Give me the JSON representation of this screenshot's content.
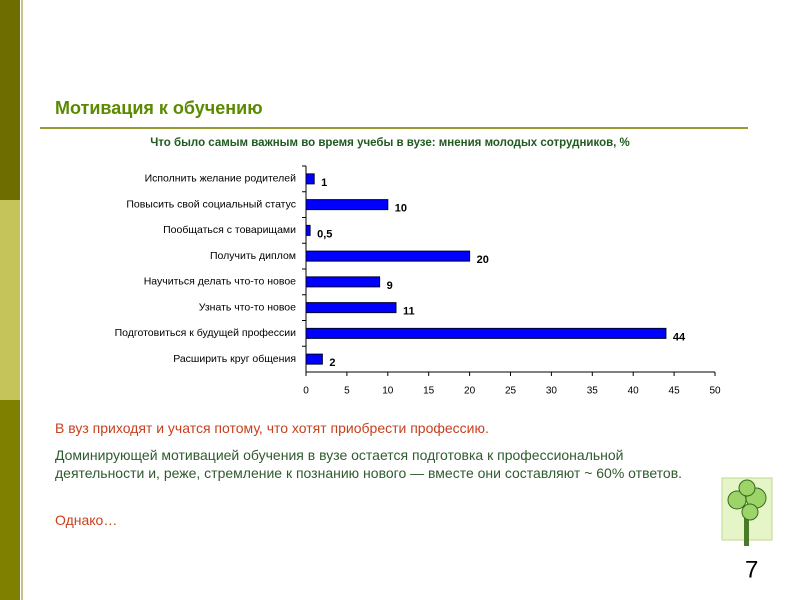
{
  "slide": {
    "title": "Мотивация к обучению",
    "paragraphs": [
      "В вуз приходят и учатся потому, что хотят приобрести профессию.",
      "Доминирующей мотивацией обучения в вузе остается подготовка к профессиональной деятельности и, реже, стремление к познанию нового — вместе они составляют ~ 60% ответов.",
      "Однако…"
    ],
    "page_number": "7"
  },
  "chart_data": {
    "type": "barh",
    "title": "Что было самым важным во время учебы в вузе: мнения молодых сотрудников, %",
    "categories": [
      "Исполнить желание родителей",
      "Повысить свой социальный статус",
      "Пообщаться с товарищами",
      "Получить диплом",
      "Научиться делать что-то новое",
      "Узнать что-то новое",
      "Подготовиться к будущей профессии",
      "Расширить круг общения"
    ],
    "values": [
      1,
      10,
      0.5,
      20,
      9,
      11,
      44,
      2
    ],
    "value_labels": [
      "1",
      "10",
      "0,5",
      "20",
      "9",
      "11",
      "44",
      "2"
    ],
    "color": "#0000ff",
    "xlim": [
      0,
      50
    ],
    "xticks": [
      0,
      5,
      10,
      15,
      20,
      25,
      30,
      35,
      40,
      45,
      50
    ]
  }
}
